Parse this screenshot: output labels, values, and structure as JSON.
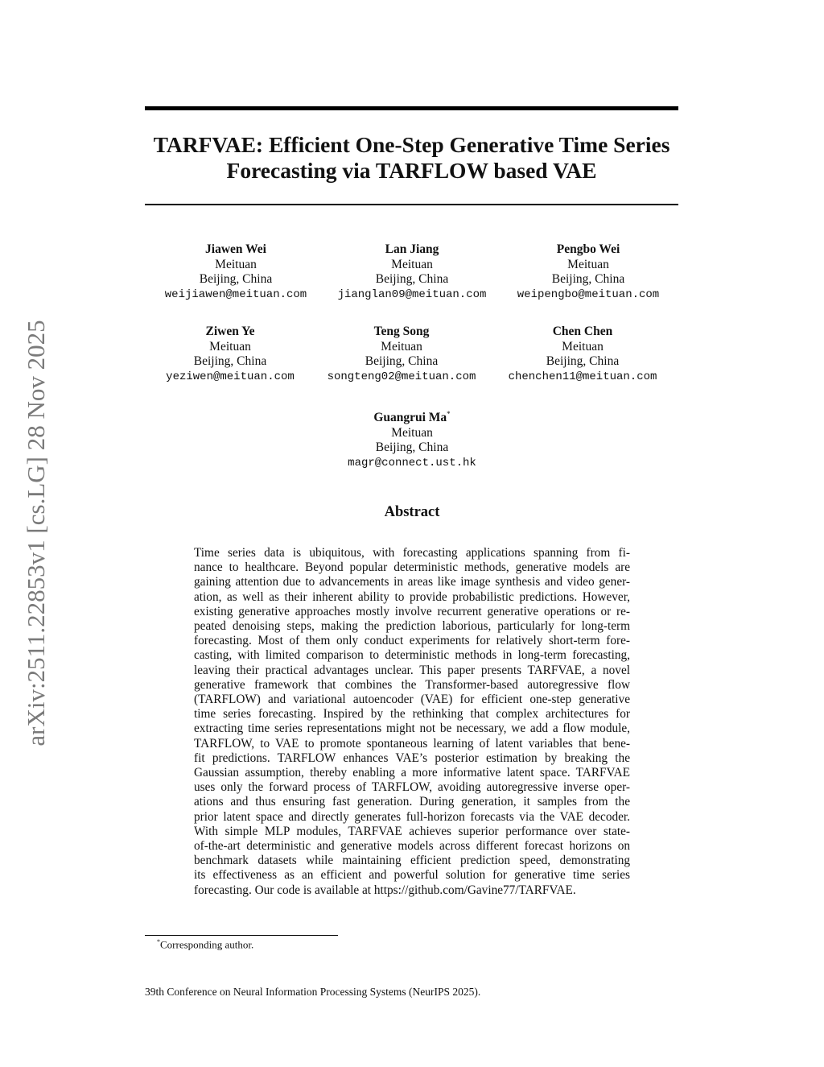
{
  "arxiv_id": "arXiv:2511.22853v1  [cs.LG]  28 Nov 2025",
  "title_lines": [
    "TARFVAE: Efficient One-Step Generative Time Series",
    "Forecasting via TARFLOW based VAE"
  ],
  "authors": [
    {
      "name": "Jiawen Wei",
      "affiliation": "Meituan",
      "location": "Beijing, China",
      "email": "weijiawen@meituan.com"
    },
    {
      "name": "Lan Jiang",
      "affiliation": "Meituan",
      "location": "Beijing, China",
      "email": "jianglan09@meituan.com"
    },
    {
      "name": "Pengbo Wei",
      "affiliation": "Meituan",
      "location": "Beijing, China",
      "email": "weipengbo@meituan.com"
    },
    {
      "name": "Ziwen Ye",
      "affiliation": "Meituan",
      "location": "Beijing, China",
      "email": "yeziwen@meituan.com"
    },
    {
      "name": "Teng Song",
      "affiliation": "Meituan",
      "location": "Beijing, China",
      "email": "songteng02@meituan.com"
    },
    {
      "name": "Chen Chen",
      "affiliation": "Meituan",
      "location": "Beijing, China",
      "email": "chenchen11@meituan.com"
    },
    {
      "name": "Guangrui Ma",
      "mark": "*",
      "affiliation": "Meituan",
      "location": "Beijing, China",
      "email": "magr@connect.ust.hk"
    }
  ],
  "abstract": {
    "heading": "Abstract",
    "lines": [
      "Time series data is ubiquitous, with forecasting applications spanning from fi-",
      "nance to healthcare. Beyond popular deterministic methods, generative models are",
      "gaining attention due to advancements in areas like image synthesis and video gener-",
      "ation, as well as their inherent ability to provide probabilistic predictions. However,",
      "existing generative approaches mostly involve recurrent generative operations or re-",
      "peated denoising steps, making the prediction laborious, particularly for long-term",
      "forecasting. Most of them only conduct experiments for relatively short-term fore-",
      "casting, with limited comparison to deterministic methods in long-term forecasting,",
      "leaving their practical advantages unclear. This paper presents TARFVAE, a novel",
      "generative framework that combines the Transformer-based autoregressive flow",
      "(TARFLOW) and variational autoencoder (VAE) for efficient one-step generative",
      "time series forecasting. Inspired by the rethinking that complex architectures for",
      "extracting time series representations might not be necessary, we add a flow module,",
      "TARFLOW, to VAE to promote spontaneous learning of latent variables that bene-",
      "fit predictions. TARFLOW enhances VAE’s posterior estimation by breaking the",
      "Gaussian assumption, thereby enabling a more informative latent space. TARFVAE",
      "uses only the forward process of TARFLOW, avoiding autoregressive inverse oper-",
      "ations and thus ensuring fast generation. During generation, it samples from the",
      "prior latent space and directly generates full-horizon forecasts via the VAE decoder.",
      "With simple MLP modules, TARFVAE achieves superior performance over state-",
      "of-the-art deterministic and generative models across different forecast horizons on",
      "benchmark datasets while maintaining efficient prediction speed, demonstrating",
      "its effectiveness as an efficient and powerful solution for generative time series",
      "forecasting. Our code is available at https://github.com/Gavine77/TARFVAE."
    ]
  },
  "footnote": {
    "mark": "*",
    "text": "Corresponding author."
  },
  "conference": "39th Conference on Neural Information Processing Systems (NeurIPS 2025)."
}
